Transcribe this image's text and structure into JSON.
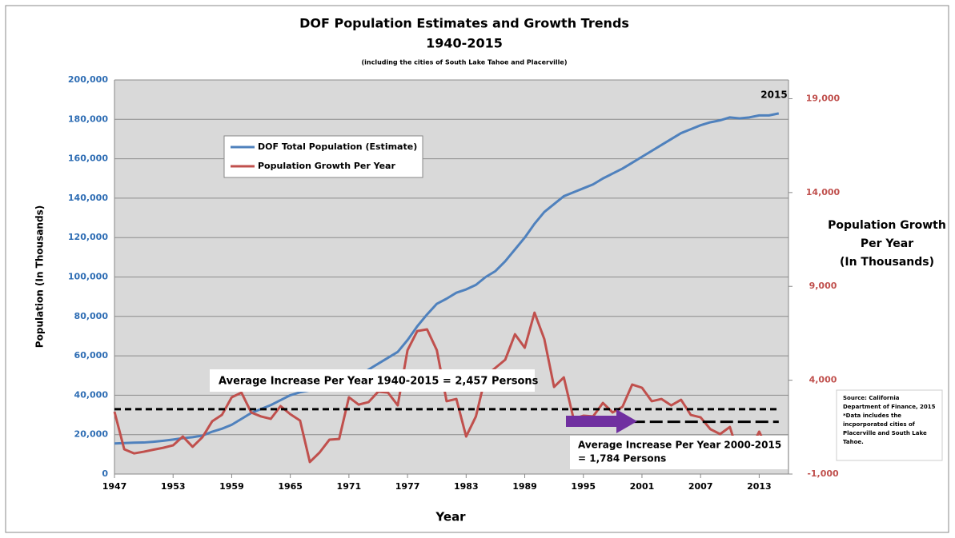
{
  "chart_data": {
    "type": "line",
    "title": "DOF Population Estimates  and Growth Trends",
    "title2": "1940-2015",
    "subtitle": "(including the cities of South Lake Tahoe and Placerville)",
    "xlabel": "Year",
    "ylabel": "Population (In Thousands)",
    "y2label": [
      "Population Growth",
      "Per Year",
      "(In Thousands)"
    ],
    "x": [
      1947,
      1948,
      1949,
      1950,
      1951,
      1952,
      1953,
      1954,
      1955,
      1956,
      1957,
      1958,
      1959,
      1960,
      1961,
      1962,
      1963,
      1964,
      1965,
      1966,
      1967,
      1968,
      1969,
      1970,
      1971,
      1972,
      1973,
      1974,
      1975,
      1976,
      1977,
      1978,
      1979,
      1980,
      1981,
      1982,
      1983,
      1984,
      1985,
      1986,
      1987,
      1988,
      1989,
      1990,
      1991,
      1992,
      1993,
      1994,
      1995,
      1996,
      1997,
      1998,
      1999,
      2000,
      2001,
      2002,
      2003,
      2004,
      2005,
      2006,
      2007,
      2008,
      2009,
      2010,
      2011,
      2012,
      2013,
      2014,
      2015
    ],
    "series": [
      {
        "name": "DOF Total Population (Estimate)",
        "color": "#4f81bd",
        "axis": "y",
        "values": [
          15500,
          15700,
          15900,
          16000,
          16400,
          16900,
          17500,
          18200,
          18700,
          19500,
          21500,
          23000,
          25000,
          28000,
          31000,
          33000,
          35000,
          37500,
          40000,
          41500,
          42500,
          43500,
          44500,
          45500,
          47000,
          50000,
          53000,
          56000,
          59000,
          62000,
          68000,
          75000,
          81000,
          86400,
          89000,
          92000,
          93700,
          96000,
          100000,
          103000,
          108000,
          114000,
          120000,
          127000,
          133000,
          137000,
          141000,
          143000,
          145000,
          147000,
          150000,
          152500,
          155000,
          158000,
          161000,
          164000,
          167000,
          170000,
          173000,
          175000,
          177000,
          178500,
          179500,
          181000,
          180500,
          181000,
          182000,
          182000,
          183000
        ]
      },
      {
        "name": "Population Growth Per Year",
        "color": "#c0504d",
        "axis": "y2",
        "values": [
          2320,
          320,
          100,
          190,
          300,
          400,
          530,
          1000,
          450,
          960,
          1810,
          2150,
          3090,
          3340,
          2280,
          2070,
          1940,
          2620,
          2190,
          1850,
          -360,
          150,
          830,
          870,
          3090,
          2700,
          2830,
          3390,
          3340,
          2660,
          5600,
          6620,
          6710,
          5600,
          2880,
          3000,
          1000,
          2070,
          4240,
          4660,
          5090,
          6450,
          5730,
          7600,
          6200,
          3640,
          4150,
          1940,
          2110,
          2070,
          2790,
          2280,
          2580,
          3770,
          3600,
          2880,
          3000,
          2660,
          2960,
          2150,
          2020,
          1390,
          1130,
          1510,
          -150,
          190,
          1260,
          150,
          530
        ]
      }
    ],
    "xlim": [
      1947,
      2016
    ],
    "xticks": [
      1947,
      1953,
      1959,
      1965,
      1971,
      1977,
      1983,
      1989,
      1995,
      2001,
      2007,
      2013
    ],
    "ylim": [
      0,
      200000
    ],
    "yticks": [
      0,
      {
        "value": 20000,
        "label": "20,000"
      },
      {
        "value": 40000,
        "label": "40,000"
      },
      {
        "value": 60000,
        "label": "60,000"
      },
      {
        "value": 80000,
        "label": "80,000"
      },
      {
        "value": 100000,
        "label": "100,000"
      },
      {
        "value": 120000,
        "label": "120,000"
      },
      {
        "value": 140000,
        "label": "140,000"
      },
      {
        "value": 160000,
        "label": "160,000"
      },
      {
        "value": 180000,
        "label": "180,000"
      },
      {
        "value": 200000,
        "label": "200,000"
      }
    ],
    "y2lim": [
      -1000,
      20000
    ],
    "y2ticks": [
      {
        "value": -1000,
        "label": "-1,000"
      },
      {
        "value": 4000,
        "label": "4,000"
      },
      {
        "value": 9000,
        "label": "9,000"
      },
      {
        "value": 14000,
        "label": "14,000"
      },
      {
        "value": 19000,
        "label": "19,000"
      }
    ],
    "grid": true,
    "reference_lines": [
      {
        "value": 2457,
        "axis": "y2",
        "x": [
          1947,
          2015
        ],
        "label": [
          "Average Increase Per Year 1940-2015 = 2,457 Persons"
        ]
      },
      {
        "value": 1784,
        "axis": "y2",
        "x": [
          2000,
          2015
        ],
        "label": [
          "Average Increase Per Year 2000-2015",
          "= 1,784 Persons"
        ]
      }
    ],
    "end_label": "2015",
    "source": [
      "Source:  California",
      "Department of Finance, 2015",
      "*Data includes the",
      "incporporated cities of",
      "Placerville and South Lake",
      "Tahoe."
    ]
  }
}
